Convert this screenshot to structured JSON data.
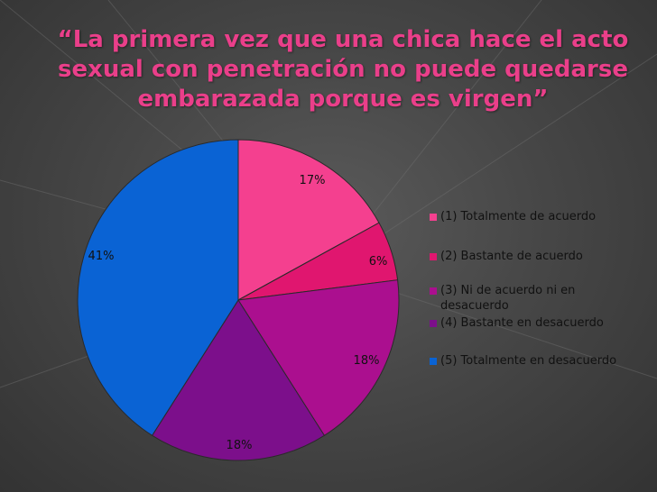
{
  "title_lines": [
    "“La primera vez que una chica hace el acto",
    "sexual con penetración no puede quedarse",
    "embarazada porque es virgen”"
  ],
  "chart_data": {
    "type": "pie",
    "categories": [
      "(1) Totalmente de acuerdo",
      "(2) Bastante de acuerdo",
      "(3) Ni de acuerdo ni en desacuerdo",
      "(4) Bastante en desacuerdo",
      "(5) Totalmente en desacuerdo"
    ],
    "values": [
      17,
      6,
      18,
      18,
      41
    ],
    "labels": [
      "17%",
      "6%",
      "18%",
      "18%",
      "41%"
    ],
    "colors": [
      "#f4408f",
      "#e0166f",
      "#ab0f8f",
      "#7c0f8b",
      "#0a63d4"
    ],
    "legend_position": "right"
  }
}
